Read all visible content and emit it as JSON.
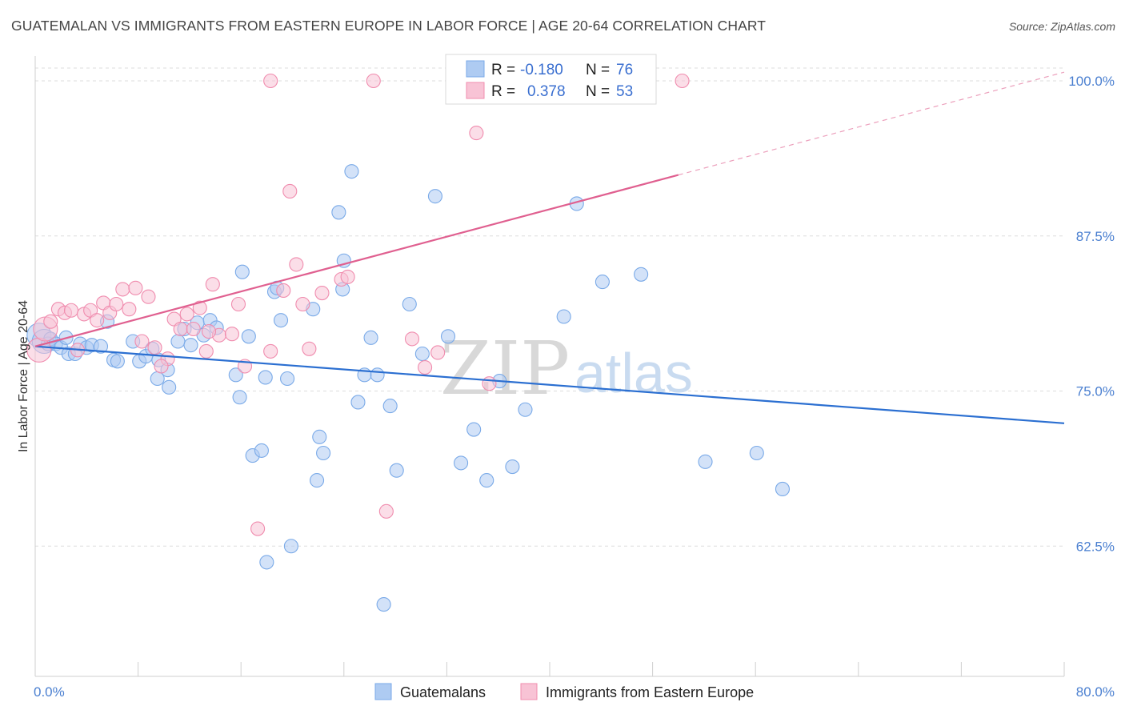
{
  "title": "GUATEMALAN VS IMMIGRANTS FROM EASTERN EUROPE IN LABOR FORCE | AGE 20-64 CORRELATION CHART",
  "source": "Source: ZipAtlas.com",
  "watermark": {
    "zip": "ZIP",
    "atlas": "atlas"
  },
  "chart_data": {
    "type": "scatter",
    "title": "GUATEMALAN VS IMMIGRANTS FROM EASTERN EUROPE IN LABOR FORCE | AGE 20-64 CORRELATION CHART",
    "xlabel": "",
    "ylabel": "In Labor Force | Age 20-64",
    "xlim": [
      0,
      80
    ],
    "ylim": [
      52,
      102
    ],
    "x_tick_labels": [
      "0.0%",
      "80.0%"
    ],
    "y_ticks": [
      62.5,
      75.0,
      87.5,
      100.0
    ],
    "y_tick_labels": [
      "62.5%",
      "75.0%",
      "87.5%",
      "100.0%"
    ],
    "grid": true,
    "legend": {
      "position": "top-center",
      "entries": [
        {
          "r_label": "R = ",
          "r_value": "-0.180",
          "n_label": "N = ",
          "n_value": "76"
        },
        {
          "r_label": "R = ",
          "r_value": "0.378",
          "n_label": "N = ",
          "n_value": "53"
        }
      ]
    },
    "series": [
      {
        "name": "Guatemalans",
        "color": "#7aaae8",
        "fill": "#aecbf2",
        "trend": {
          "x": [
            0,
            80
          ],
          "y": [
            78.6,
            72.4
          ],
          "color": "#2b6fd1"
        },
        "points": [
          [
            0.3,
            79.5
          ],
          [
            0.7,
            79.0
          ],
          [
            1.0,
            78.8
          ],
          [
            1.2,
            79.2
          ],
          [
            1.6,
            78.8
          ],
          [
            2.0,
            78.5
          ],
          [
            2.4,
            79.3
          ],
          [
            2.6,
            78.0
          ],
          [
            3.1,
            78.0
          ],
          [
            3.5,
            78.8
          ],
          [
            4.0,
            78.5
          ],
          [
            4.4,
            78.7
          ],
          [
            5.1,
            78.6
          ],
          [
            6.1,
            77.5
          ],
          [
            6.4,
            77.4
          ],
          [
            5.6,
            80.6
          ],
          [
            7.6,
            79.0
          ],
          [
            8.1,
            77.4
          ],
          [
            8.6,
            77.8
          ],
          [
            9.1,
            78.4
          ],
          [
            9.6,
            77.5
          ],
          [
            10.3,
            76.7
          ],
          [
            10.4,
            75.3
          ],
          [
            11.1,
            79.0
          ],
          [
            11.6,
            80.0
          ],
          [
            12.1,
            78.7
          ],
          [
            12.6,
            80.5
          ],
          [
            13.1,
            79.5
          ],
          [
            13.6,
            80.7
          ],
          [
            14.1,
            80.1
          ],
          [
            15.6,
            76.3
          ],
          [
            15.9,
            74.5
          ],
          [
            16.1,
            84.6
          ],
          [
            16.6,
            79.4
          ],
          [
            16.9,
            69.8
          ],
          [
            17.6,
            70.2
          ],
          [
            17.9,
            76.1
          ],
          [
            18.6,
            83.0
          ],
          [
            18.8,
            83.3
          ],
          [
            19.1,
            80.7
          ],
          [
            19.6,
            76.0
          ],
          [
            19.9,
            62.5
          ],
          [
            21.6,
            81.6
          ],
          [
            21.9,
            67.8
          ],
          [
            22.1,
            71.3
          ],
          [
            22.4,
            70.0
          ],
          [
            23.6,
            89.4
          ],
          [
            23.9,
            83.2
          ],
          [
            24.6,
            92.7
          ],
          [
            25.1,
            74.1
          ],
          [
            25.6,
            76.3
          ],
          [
            26.1,
            79.3
          ],
          [
            26.6,
            76.3
          ],
          [
            27.1,
            57.8
          ],
          [
            27.6,
            73.8
          ],
          [
            28.1,
            68.6
          ],
          [
            29.1,
            82.0
          ],
          [
            30.1,
            78.0
          ],
          [
            31.1,
            90.7
          ],
          [
            32.1,
            79.4
          ],
          [
            33.1,
            69.2
          ],
          [
            34.1,
            71.9
          ],
          [
            35.1,
            67.8
          ],
          [
            36.1,
            75.8
          ],
          [
            37.1,
            68.9
          ],
          [
            38.1,
            73.5
          ],
          [
            41.1,
            81.0
          ],
          [
            42.1,
            90.1
          ],
          [
            44.1,
            83.8
          ],
          [
            47.1,
            84.4
          ],
          [
            52.1,
            69.3
          ],
          [
            56.1,
            70.0
          ],
          [
            58.1,
            67.1
          ],
          [
            18.0,
            61.2
          ],
          [
            24.0,
            85.5
          ],
          [
            9.5,
            76.0
          ]
        ]
      },
      {
        "name": "Immigrants from Eastern Europe",
        "color": "#f08cae",
        "fill": "#f8c3d5",
        "trend": {
          "x": [
            0,
            80
          ],
          "y": [
            78.6,
            100.7
          ],
          "solid_until_x": 50,
          "color": "#e06090"
        },
        "points": [
          [
            0.3,
            78.3
          ],
          [
            0.8,
            80.0
          ],
          [
            1.2,
            80.6
          ],
          [
            1.8,
            81.6
          ],
          [
            2.3,
            81.3
          ],
          [
            2.8,
            81.5
          ],
          [
            3.3,
            78.3
          ],
          [
            3.8,
            81.2
          ],
          [
            4.3,
            81.5
          ],
          [
            4.8,
            80.7
          ],
          [
            5.3,
            82.1
          ],
          [
            5.8,
            81.3
          ],
          [
            6.3,
            82.0
          ],
          [
            6.8,
            83.2
          ],
          [
            7.3,
            81.6
          ],
          [
            7.8,
            83.3
          ],
          [
            8.3,
            79.0
          ],
          [
            8.8,
            82.6
          ],
          [
            9.3,
            78.5
          ],
          [
            10.3,
            77.6
          ],
          [
            10.8,
            80.8
          ],
          [
            11.3,
            80.0
          ],
          [
            11.8,
            81.2
          ],
          [
            12.3,
            80.0
          ],
          [
            12.8,
            81.7
          ],
          [
            13.3,
            78.2
          ],
          [
            13.8,
            83.6
          ],
          [
            14.3,
            79.5
          ],
          [
            15.3,
            79.6
          ],
          [
            15.8,
            82.0
          ],
          [
            16.3,
            77.0
          ],
          [
            17.3,
            63.9
          ],
          [
            18.3,
            78.2
          ],
          [
            19.3,
            83.1
          ],
          [
            19.8,
            91.1
          ],
          [
            20.3,
            85.2
          ],
          [
            20.8,
            82.0
          ],
          [
            21.3,
            78.4
          ],
          [
            22.3,
            82.9
          ],
          [
            23.8,
            84.0
          ],
          [
            24.3,
            84.2
          ],
          [
            26.3,
            100.0
          ],
          [
            27.3,
            65.3
          ],
          [
            29.3,
            79.2
          ],
          [
            30.3,
            76.9
          ],
          [
            31.3,
            78.1
          ],
          [
            33.3,
            100.0
          ],
          [
            34.3,
            95.8
          ],
          [
            35.3,
            75.6
          ],
          [
            50.3,
            100.0
          ],
          [
            18.3,
            100.0
          ],
          [
            9.8,
            77.0
          ],
          [
            13.5,
            79.8
          ]
        ]
      }
    ]
  },
  "bottom_legend": [
    "Guatemalans",
    "Immigrants from Eastern Europe"
  ]
}
